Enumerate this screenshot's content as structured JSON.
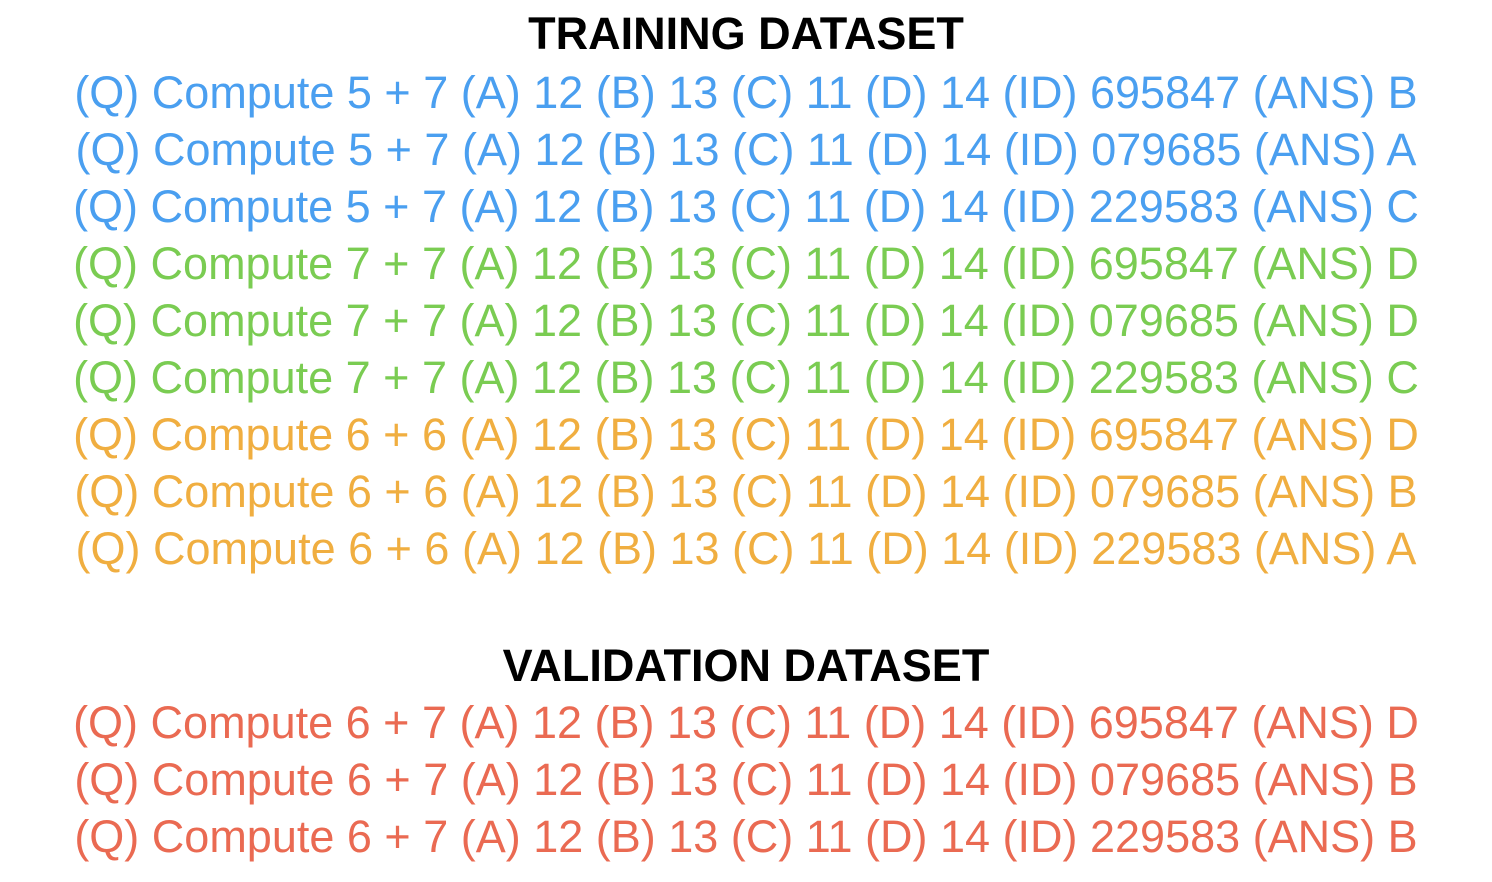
{
  "training": {
    "title": "TRAINING DATASET",
    "rows": [
      {
        "text": "(Q) Compute 5 + 7 (A) 12 (B) 13 (C) 11 (D) 14 (ID) 695847 (ANS) B",
        "color": "#4a9ff0"
      },
      {
        "text": "(Q) Compute 5 + 7 (A) 12 (B) 13 (C) 11 (D) 14 (ID) 079685 (ANS) A",
        "color": "#4a9ff0"
      },
      {
        "text": "(Q) Compute 5 + 7 (A) 12 (B) 13 (C) 11 (D) 14 (ID) 229583 (ANS) C",
        "color": "#4a9ff0"
      },
      {
        "text": "(Q) Compute 7 + 7 (A) 12 (B) 13 (C) 11 (D) 14 (ID) 695847 (ANS) D",
        "color": "#7acc52"
      },
      {
        "text": "(Q) Compute 7 + 7 (A) 12 (B) 13 (C) 11 (D) 14 (ID) 079685 (ANS) D",
        "color": "#7acc52"
      },
      {
        "text": "(Q) Compute 7 + 7 (A) 12 (B) 13 (C) 11 (D) 14 (ID) 229583 (ANS) C",
        "color": "#7acc52"
      },
      {
        "text": "(Q) Compute 6 + 6 (A) 12 (B) 13 (C) 11 (D) 14 (ID) 695847 (ANS) D",
        "color": "#f0ae40"
      },
      {
        "text": "(Q) Compute 6 + 6 (A) 12 (B) 13 (C) 11 (D) 14 (ID) 079685 (ANS) B",
        "color": "#f0ae40"
      },
      {
        "text": "(Q) Compute 6 + 6 (A) 12 (B) 13 (C) 11 (D) 14 (ID) 229583 (ANS) A",
        "color": "#f0ae40"
      }
    ]
  },
  "validation": {
    "title": "VALIDATION DATASET",
    "rows": [
      {
        "text": "(Q) Compute 6 + 7 (A) 12 (B) 13 (C) 11 (D) 14 (ID) 695847 (ANS) D",
        "color": "#ea6a52"
      },
      {
        "text": "(Q) Compute 6 + 7 (A) 12 (B) 13 (C) 11 (D) 14 (ID) 079685 (ANS) B",
        "color": "#ea6a52"
      },
      {
        "text": "(Q) Compute 6 + 7 (A) 12 (B) 13 (C) 11 (D) 14 (ID) 229583 (ANS) B",
        "color": "#ea6a52"
      }
    ]
  }
}
